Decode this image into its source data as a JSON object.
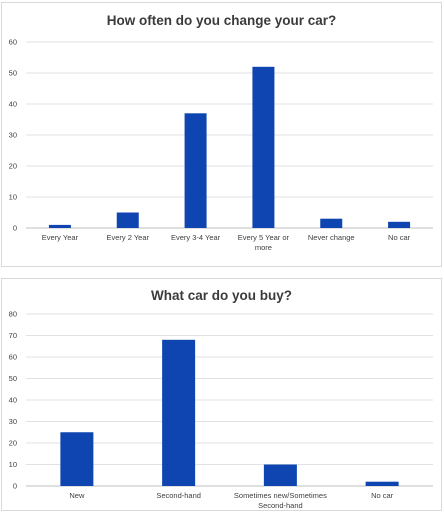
{
  "chart_data": [
    {
      "type": "bar",
      "title": "How often do you change your car?",
      "categories": [
        "Every Year",
        "Every 2 Year",
        "Every 3-4 Year",
        "Every 5 Year or more",
        "Never change",
        "No car"
      ],
      "category_lines": [
        [
          "Every Year"
        ],
        [
          "Every 2 Year"
        ],
        [
          "Every 3-4 Year"
        ],
        [
          "Every 5 Year or",
          "more"
        ],
        [
          "Never change"
        ],
        [
          "No car"
        ]
      ],
      "values": [
        1,
        5,
        37,
        52,
        3,
        2
      ],
      "ylim": [
        0,
        60
      ],
      "yticks": [
        0,
        10,
        20,
        30,
        40,
        50,
        60
      ],
      "grid": true,
      "bar_color": "#0f45b0"
    },
    {
      "type": "bar",
      "title": "What car do you buy?",
      "categories": [
        "New",
        "Second-hand",
        "Sometimes new/Sometimes Second-hand",
        "No car"
      ],
      "category_lines": [
        [
          "New"
        ],
        [
          "Second-hand"
        ],
        [
          "Sometimes new/Sometimes",
          "Second-hand"
        ],
        [
          "No car"
        ]
      ],
      "values": [
        25,
        68,
        10,
        2
      ],
      "ylim": [
        0,
        80
      ],
      "yticks": [
        0,
        10,
        20,
        30,
        40,
        50,
        60,
        70,
        80
      ],
      "grid": true,
      "bar_color": "#0f45b0"
    }
  ]
}
